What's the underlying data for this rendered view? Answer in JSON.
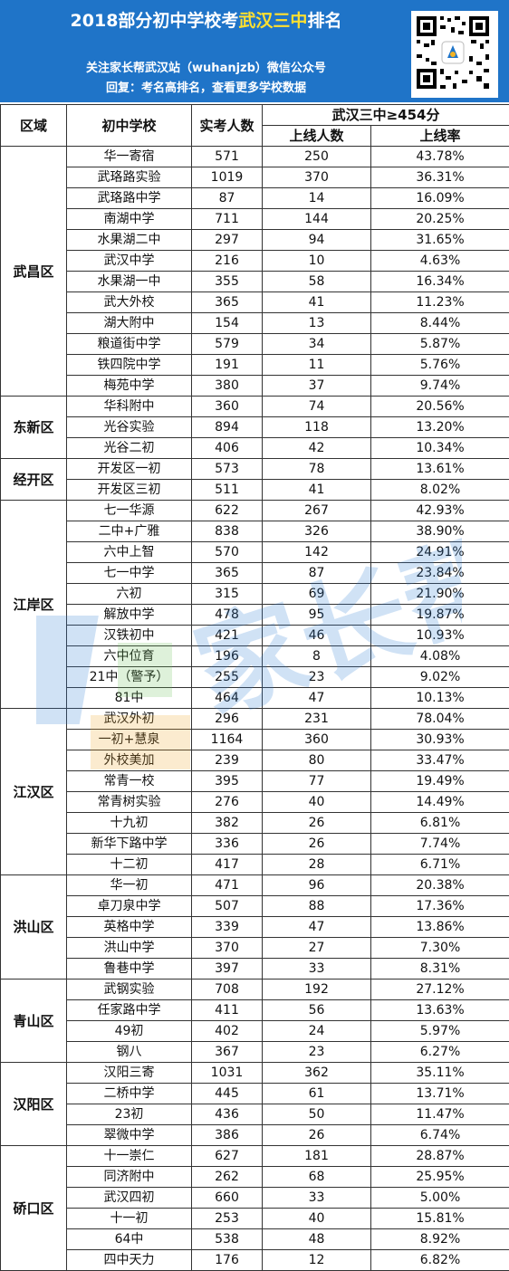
{
  "header": {
    "title_prefix": "2018部分初中学校考",
    "title_highlight": "武汉三中",
    "title_suffix": "排名",
    "line1": "关注家长帮武汉站（wuhanjzb）微信公众号",
    "line2": "回复：考名高排名，查看更多学校数据"
  },
  "columns": {
    "region": "区域",
    "school": "初中学校",
    "count": "实考人数",
    "group": "武汉三中≥454分",
    "passed": "上线人数",
    "rate": "上线率"
  },
  "watermark_text": "家长帮",
  "regions": [
    {
      "name": "武昌区",
      "rows": [
        [
          "华一寄宿",
          "571",
          "250",
          "43.78%"
        ],
        [
          "武珞路实验",
          "1019",
          "370",
          "36.31%"
        ],
        [
          "武珞路中学",
          "87",
          "14",
          "16.09%"
        ],
        [
          "南湖中学",
          "711",
          "144",
          "20.25%"
        ],
        [
          "水果湖二中",
          "297",
          "94",
          "31.65%"
        ],
        [
          "武汉中学",
          "216",
          "10",
          "4.63%"
        ],
        [
          "水果湖一中",
          "355",
          "58",
          "16.34%"
        ],
        [
          "武大外校",
          "365",
          "41",
          "11.23%"
        ],
        [
          "湖大附中",
          "154",
          "13",
          "8.44%"
        ],
        [
          "粮道街中学",
          "579",
          "34",
          "5.87%"
        ],
        [
          "铁四院中学",
          "191",
          "11",
          "5.76%"
        ],
        [
          "梅苑中学",
          "380",
          "37",
          "9.74%"
        ]
      ]
    },
    {
      "name": "东新区",
      "rows": [
        [
          "华科附中",
          "360",
          "74",
          "20.56%"
        ],
        [
          "光谷实验",
          "894",
          "118",
          "13.20%"
        ],
        [
          "光谷二初",
          "406",
          "42",
          "10.34%"
        ]
      ]
    },
    {
      "name": "经开区",
      "rows": [
        [
          "开发区一初",
          "573",
          "78",
          "13.61%"
        ],
        [
          "开发区三初",
          "511",
          "41",
          "8.02%"
        ]
      ]
    },
    {
      "name": "江岸区",
      "rows": [
        [
          "七一华源",
          "622",
          "267",
          "42.93%"
        ],
        [
          "二中+广雅",
          "838",
          "326",
          "38.90%"
        ],
        [
          "六中上智",
          "570",
          "142",
          "24.91%"
        ],
        [
          "七一中学",
          "365",
          "87",
          "23.84%"
        ],
        [
          "六初",
          "315",
          "69",
          "21.90%"
        ],
        [
          "解放中学",
          "478",
          "95",
          "19.87%"
        ],
        [
          "汉铁初中",
          "421",
          "46",
          "10.93%"
        ],
        [
          "六中位育",
          "196",
          "8",
          "4.08%"
        ],
        [
          "21中（警予）",
          "255",
          "23",
          "9.02%"
        ],
        [
          "81中",
          "464",
          "47",
          "10.13%"
        ]
      ]
    },
    {
      "name": "江汉区",
      "rows": [
        [
          "武汉外初",
          "296",
          "231",
          "78.04%"
        ],
        [
          "一初+慧泉",
          "1164",
          "360",
          "30.93%"
        ],
        [
          "外校美加",
          "239",
          "80",
          "33.47%"
        ],
        [
          "常青一校",
          "395",
          "77",
          "19.49%"
        ],
        [
          "常青树实验",
          "276",
          "40",
          "14.49%"
        ],
        [
          "十九初",
          "382",
          "26",
          "6.81%"
        ],
        [
          "新华下路中学",
          "336",
          "26",
          "7.74%"
        ],
        [
          "十二初",
          "417",
          "28",
          "6.71%"
        ]
      ]
    },
    {
      "name": "洪山区",
      "rows": [
        [
          "华一初",
          "471",
          "96",
          "20.38%"
        ],
        [
          "卓刀泉中学",
          "507",
          "88",
          "17.36%"
        ],
        [
          "英格中学",
          "339",
          "47",
          "13.86%"
        ],
        [
          "洪山中学",
          "370",
          "27",
          "7.30%"
        ],
        [
          "鲁巷中学",
          "397",
          "33",
          "8.31%"
        ]
      ]
    },
    {
      "name": "青山区",
      "rows": [
        [
          "武钢实验",
          "708",
          "192",
          "27.12%"
        ],
        [
          "任家路中学",
          "411",
          "56",
          "13.63%"
        ],
        [
          "49初",
          "402",
          "24",
          "5.97%"
        ],
        [
          "钢八",
          "367",
          "23",
          "6.27%"
        ]
      ]
    },
    {
      "name": "汉阳区",
      "rows": [
        [
          "汉阳三寄",
          "1031",
          "362",
          "35.11%"
        ],
        [
          "二桥中学",
          "445",
          "61",
          "13.71%"
        ],
        [
          "23初",
          "436",
          "50",
          "11.47%"
        ],
        [
          "翠微中学",
          "386",
          "26",
          "6.74%"
        ]
      ]
    },
    {
      "name": "硚口区",
      "rows": [
        [
          "十一崇仁",
          "627",
          "181",
          "28.87%"
        ],
        [
          "同济附中",
          "262",
          "68",
          "25.95%"
        ],
        [
          "武汉四初",
          "660",
          "33",
          "5.00%"
        ],
        [
          "十一初",
          "253",
          "40",
          "15.81%"
        ],
        [
          "64中",
          "538",
          "48",
          "8.92%"
        ],
        [
          "四中天力",
          "176",
          "12",
          "6.82%"
        ]
      ]
    }
  ]
}
